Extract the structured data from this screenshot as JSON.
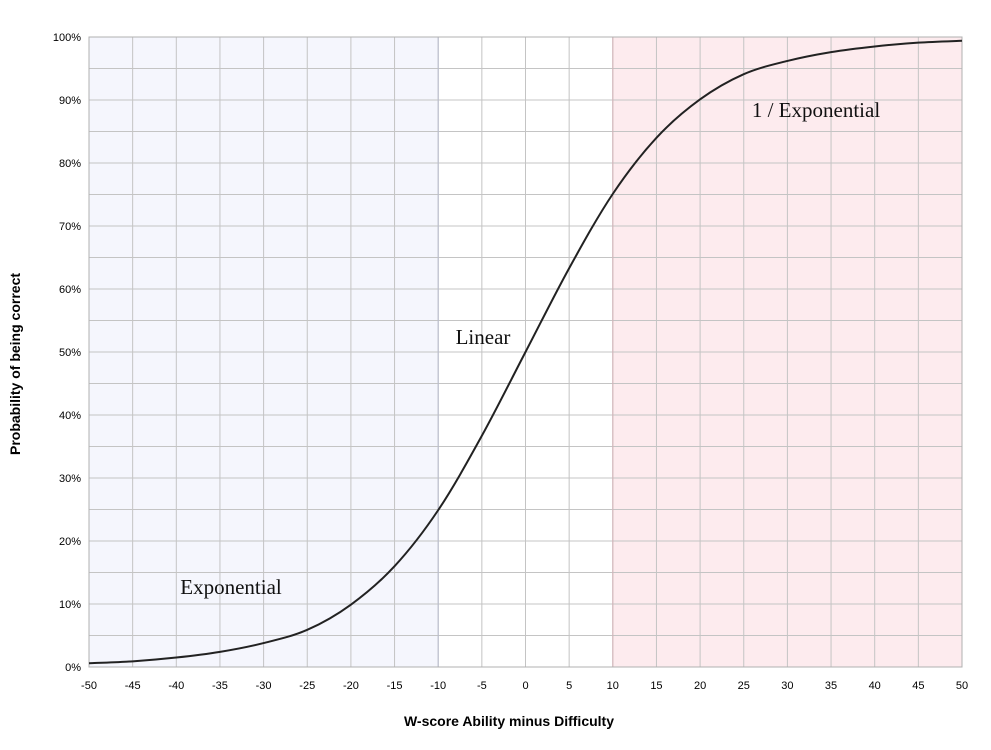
{
  "chart_data": {
    "type": "line",
    "xlabel": "W-score Ability minus Difficulty",
    "ylabel": "Probability of being correct",
    "xlim": [
      -50,
      50
    ],
    "ylim": [
      0,
      100
    ],
    "x_ticks": [
      "-50",
      "-45",
      "-40",
      "-35",
      "-30",
      "-25",
      "-20",
      "-15",
      "-10",
      "-5",
      "0",
      "5",
      "10",
      "15",
      "20",
      "25",
      "30",
      "35",
      "40",
      "45",
      "50"
    ],
    "y_ticks": [
      "0%",
      "10%",
      "20%",
      "30%",
      "40%",
      "50%",
      "60%",
      "70%",
      "80%",
      "90%",
      "100%"
    ],
    "grid": true,
    "legend": "none",
    "regions": [
      {
        "label": "Exponential",
        "x_from": -50,
        "x_to": -10,
        "color": "#f5f6fd"
      },
      {
        "label": "Linear",
        "x_from": -10,
        "x_to": 10,
        "color": "#ffffff"
      },
      {
        "label": "1 / Exponential",
        "x_from": 10,
        "x_to": 50,
        "color": "#fdebee"
      }
    ],
    "series": [
      {
        "color": "#222222",
        "x": [
          -50,
          -45,
          -40,
          -35,
          -30,
          -25,
          -20,
          -15,
          -10,
          -5,
          0,
          5,
          10,
          15,
          20,
          25,
          30,
          35,
          40,
          45,
          50
        ],
        "values": [
          0.6,
          0.9,
          1.5,
          2.4,
          3.8,
          5.9,
          9.9,
          16.0,
          24.9,
          36.7,
          50.0,
          63.3,
          75.1,
          84.0,
          90.1,
          94.1,
          96.2,
          97.6,
          98.5,
          99.1,
          99.4
        ]
      }
    ]
  }
}
